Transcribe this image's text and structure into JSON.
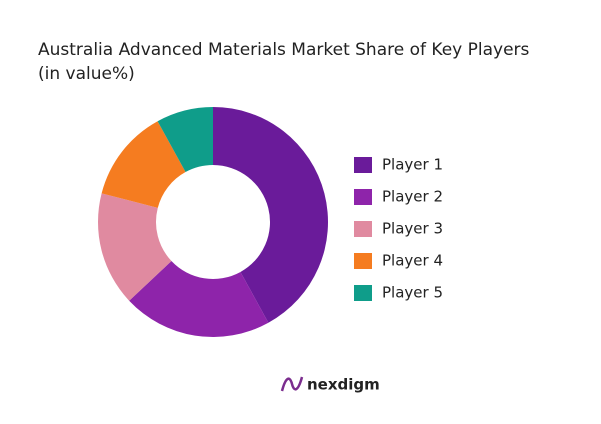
{
  "chart_data": {
    "type": "donut",
    "title": "Australia Advanced Materials Market Share of Key Players",
    "subtitle": "(in value%)",
    "series": [
      {
        "name": "Player 1",
        "color": "#6a1b9a",
        "values": [
          42
        ]
      },
      {
        "name": "Player 2",
        "color": "#8e24aa",
        "values": [
          21
        ]
      },
      {
        "name": "Player 3",
        "color": "#e08aa0",
        "values": [
          16
        ]
      },
      {
        "name": "Player 4",
        "color": "#f57c20",
        "values": [
          13
        ]
      },
      {
        "name": "Player 5",
        "color": "#0f9d8a",
        "values": [
          8
        ]
      }
    ],
    "legend": "right"
  },
  "logo": "nexdigm"
}
